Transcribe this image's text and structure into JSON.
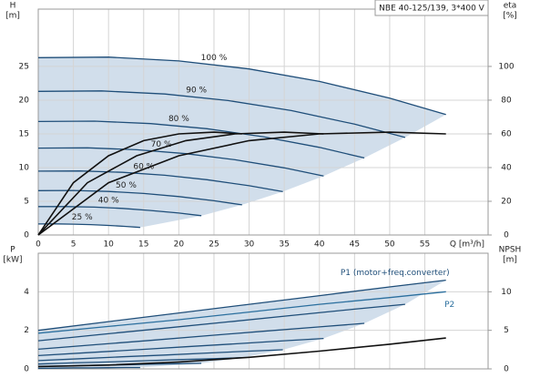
{
  "chart_data": [
    {
      "type": "line",
      "title": "NBE 40-125/139, 3*400 V",
      "xlabel": "Q [m³/h]",
      "ylabel": "H",
      "yunit": "[m]",
      "y2label": "eta",
      "y2unit": "[%]",
      "xlim": [
        0,
        64
      ],
      "ylim": [
        0,
        33.5
      ],
      "y2lim": [
        0,
        134
      ],
      "xticks": [
        0,
        5,
        10,
        15,
        20,
        25,
        30,
        35,
        40,
        45,
        50,
        55
      ],
      "yticks": [
        0,
        5,
        10,
        15,
        20,
        25
      ],
      "y2ticks": [
        0,
        20,
        40,
        60,
        80,
        100
      ],
      "grid": true,
      "shade": "#c9d8e8",
      "series": [
        {
          "name": "100 %",
          "color": "#1f4e79",
          "x": [
            0,
            10,
            20,
            30,
            40,
            50,
            58
          ],
          "values": [
            26.3,
            26.38,
            25.82,
            24.62,
            22.78,
            20.3,
            17.86
          ]
        },
        {
          "name": "90 %",
          "color": "#1f4e79",
          "x": [
            0,
            9,
            18,
            27,
            36,
            45,
            52.2
          ],
          "values": [
            21.3,
            21.37,
            20.91,
            19.94,
            18.45,
            16.44,
            14.47
          ]
        },
        {
          "name": "80 %",
          "color": "#1f4e79",
          "x": [
            0,
            8,
            16,
            24,
            32,
            40,
            46.4
          ],
          "values": [
            16.83,
            16.88,
            16.52,
            15.76,
            14.58,
            12.99,
            11.43
          ]
        },
        {
          "name": "70 %",
          "color": "#1f4e79",
          "x": [
            0,
            7,
            14,
            21,
            28,
            35,
            40.6
          ],
          "values": [
            12.89,
            12.93,
            12.65,
            12.06,
            11.16,
            9.95,
            8.75
          ]
        },
        {
          "name": "60 %",
          "color": "#1f4e79",
          "x": [
            0,
            6,
            12,
            18,
            24,
            30,
            34.8
          ],
          "values": [
            9.47,
            9.5,
            9.3,
            8.86,
            8.2,
            7.31,
            6.43
          ]
        },
        {
          "name": "50 %",
          "color": "#1f4e79",
          "x": [
            0,
            5,
            10,
            15,
            20,
            25,
            29
          ],
          "values": [
            6.58,
            6.6,
            6.46,
            6.16,
            5.7,
            5.08,
            4.47
          ]
        },
        {
          "name": "40 %",
          "color": "#1f4e79",
          "x": [
            0,
            4,
            8,
            12,
            16,
            20,
            23.2
          ],
          "values": [
            4.21,
            4.22,
            4.13,
            3.94,
            3.64,
            3.25,
            2.86
          ]
        },
        {
          "name": "25 %",
          "color": "#1f4e79",
          "x": [
            0,
            2.5,
            5,
            7.5,
            10,
            12.5,
            14.5
          ],
          "values": [
            1.64,
            1.65,
            1.61,
            1.54,
            1.42,
            1.27,
            1.12
          ]
        },
        {
          "color": "#111111",
          "axis": "y2",
          "x": [
            0,
            10,
            20,
            30,
            40,
            50,
            58
          ],
          "values": [
            0,
            31,
            47,
            56,
            60,
            61,
            60
          ]
        },
        {
          "color": "#111111",
          "axis": "y2",
          "x": [
            0,
            7,
            14,
            21,
            28,
            35,
            40.6
          ],
          "values": [
            0,
            31,
            47,
            56,
            60,
            61,
            60
          ]
        },
        {
          "color": "#111111",
          "axis": "y2",
          "x": [
            0,
            5,
            10,
            15,
            20,
            25,
            29
          ],
          "values": [
            0,
            31,
            47,
            56,
            60,
            61,
            60
          ]
        }
      ]
    },
    {
      "type": "line",
      "ylabel": "P",
      "yunit": "[kW]",
      "y2label": "NPSH",
      "y2unit": "[m]",
      "xlim": [
        0,
        64
      ],
      "ylim": [
        0,
        6
      ],
      "y2lim": [
        0,
        15
      ],
      "xticks": [
        0,
        5,
        10,
        15,
        20,
        25,
        30,
        35,
        40,
        45,
        50,
        55
      ],
      "yticks": [
        0,
        2,
        4
      ],
      "y2ticks": [
        0,
        5,
        10
      ],
      "grid": true,
      "shade": "#c9d8e8",
      "series": [
        {
          "name": "P1 (motor+freq.converter)",
          "color": "#1f4e79",
          "x": [
            0,
            10,
            20,
            30,
            40,
            50,
            58
          ],
          "values": [
            2.0,
            2.45,
            2.9,
            3.35,
            3.8,
            4.25,
            4.6
          ]
        },
        {
          "color": "#1f4e79",
          "x": [
            0,
            9,
            18,
            27,
            36,
            45,
            52.2
          ],
          "values": [
            1.46,
            1.79,
            2.11,
            2.44,
            2.77,
            3.1,
            3.35
          ]
        },
        {
          "color": "#1f4e79",
          "x": [
            0,
            8,
            16,
            24,
            32,
            40,
            46.4
          ],
          "values": [
            1.02,
            1.25,
            1.48,
            1.72,
            1.95,
            2.18,
            2.36
          ]
        },
        {
          "color": "#1f4e79",
          "x": [
            0,
            7,
            14,
            21,
            28,
            35,
            40.6
          ],
          "values": [
            0.69,
            0.84,
            0.99,
            1.15,
            1.3,
            1.46,
            1.58
          ]
        },
        {
          "color": "#1f4e79",
          "x": [
            0,
            6,
            12,
            18,
            24,
            30,
            34.8
          ],
          "values": [
            0.43,
            0.53,
            0.63,
            0.72,
            0.82,
            0.92,
            0.99
          ]
        },
        {
          "color": "#1f4e79",
          "x": [
            0,
            5,
            10,
            15,
            20,
            25,
            29
          ],
          "values": [
            0.25,
            0.31,
            0.36,
            0.42,
            0.48,
            0.53,
            0.58
          ]
        },
        {
          "color": "#1f4e79",
          "x": [
            0,
            4,
            8,
            12,
            16,
            20,
            23.2
          ],
          "values": [
            0.13,
            0.16,
            0.19,
            0.21,
            0.24,
            0.27,
            0.29
          ]
        },
        {
          "color": "#1f4e79",
          "x": [
            0,
            2.5,
            5,
            7.5,
            10,
            12.5,
            14.5
          ],
          "values": [
            0.03,
            0.04,
            0.05,
            0.05,
            0.06,
            0.07,
            0.07
          ]
        },
        {
          "name": "P2",
          "color": "#2b6f9e",
          "x": [
            0,
            10,
            20,
            30,
            40,
            50,
            58
          ],
          "values": [
            1.85,
            2.2,
            2.55,
            2.95,
            3.35,
            3.7,
            4.0
          ]
        },
        {
          "color": "#111111",
          "axis": "y2",
          "x": [
            0,
            10,
            20,
            30,
            40,
            50,
            58
          ],
          "values": [
            0.3,
            0.5,
            0.9,
            1.5,
            2.3,
            3.2,
            4.0
          ]
        }
      ]
    }
  ]
}
